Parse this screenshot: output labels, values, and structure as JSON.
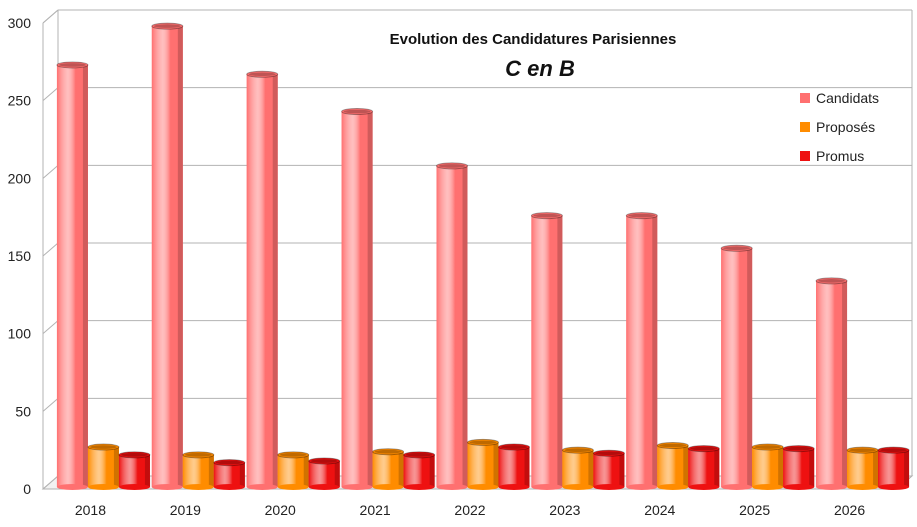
{
  "chart_data": {
    "type": "bar",
    "title": "Evolution des Candidatures Parisiennes",
    "subtitle": "C en B",
    "categories": [
      "2018",
      "2019",
      "2020",
      "2021",
      "2022",
      "2023",
      "2024",
      "2025",
      "2026"
    ],
    "series": [
      {
        "name": "Candidats",
        "color": "#ff7070",
        "values": [
          273,
          298,
          267,
          243,
          208,
          176,
          176,
          155,
          134
        ]
      },
      {
        "name": "Proposés",
        "color": "#ff8c00",
        "values": [
          27,
          22,
          22,
          24,
          30,
          25,
          28,
          27,
          25
        ]
      },
      {
        "name": "Promus",
        "color": "#ee1111",
        "values": [
          22,
          17,
          18,
          22,
          27,
          23,
          26,
          26,
          25
        ]
      }
    ],
    "yticks": [
      "0",
      "50",
      "100",
      "150",
      "200",
      "250",
      "300"
    ],
    "ylim": [
      0,
      300
    ],
    "grid": true,
    "legend": "top-right",
    "style": "3d-cylinder"
  }
}
